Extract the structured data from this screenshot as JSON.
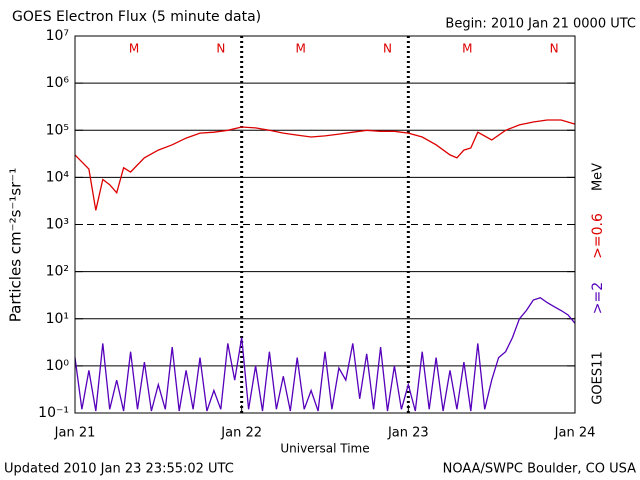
{
  "chart_data": {
    "type": "line",
    "title": "GOES Electron Flux (5 minute data)",
    "subtitle": "Begin: 2010 Jan 21 0000 UTC",
    "footer_left": "Updated 2010 Jan 23 23:55:02 UTC",
    "footer_right": "NOAA/SWPC Boulder, CO USA",
    "x_label": "Universal Time",
    "y_label": "Particles cm⁻²s⁻¹sr⁻¹",
    "satellite": "GOES11",
    "units_label": "MeV",
    "log_scale": true,
    "grid": true,
    "threshold": 1000,
    "xlim": [
      0,
      72
    ],
    "xticks": [
      {
        "value": 0,
        "label": "Jan 21"
      },
      {
        "value": 24,
        "label": "Jan 22"
      },
      {
        "value": 48,
        "label": "Jan 23"
      },
      {
        "value": 72,
        "label": "Jan 24"
      }
    ],
    "ylim": [
      0.1,
      10000000
    ],
    "yticks": [
      {
        "value": 0.1,
        "label": "10⁻¹"
      },
      {
        "value": 1,
        "label": "10⁰"
      },
      {
        "value": 10,
        "label": "10¹"
      },
      {
        "value": 100,
        "label": "10²"
      },
      {
        "value": 1000,
        "label": "10³"
      },
      {
        "value": 10000,
        "label": "10⁴"
      },
      {
        "value": 100000,
        "label": "10⁵"
      },
      {
        "value": 1000000,
        "label": "10⁶"
      },
      {
        "value": 10000000,
        "label": "10⁷"
      }
    ],
    "annotations": [
      {
        "text": "M",
        "x": 8.5
      },
      {
        "text": "N",
        "x": 21
      },
      {
        "text": "M",
        "x": 32.5
      },
      {
        "text": "N",
        "x": 45
      },
      {
        "text": "M",
        "x": 56.5
      },
      {
        "text": "N",
        "x": 69
      }
    ],
    "annotation_color": "#dd0000",
    "series": [
      {
        "name": ">=2",
        "color": "#5500bb",
        "x": [
          0,
          1,
          2,
          3,
          4,
          5,
          6,
          7,
          8,
          9,
          10,
          11,
          12,
          13,
          14,
          15,
          16,
          17,
          18,
          19,
          20,
          21,
          22,
          23,
          24,
          25,
          26,
          27,
          28,
          29,
          30,
          31,
          32,
          33,
          34,
          35,
          36,
          37,
          38,
          39,
          40,
          41,
          42,
          43,
          44,
          45,
          46,
          47,
          48,
          49,
          50,
          51,
          52,
          53,
          54,
          55,
          56,
          57,
          58,
          59,
          60,
          61,
          62,
          63,
          64,
          65,
          66,
          67,
          68,
          69,
          70,
          71,
          72
        ],
        "values": [
          1.5,
          0.12,
          0.8,
          0.11,
          3,
          0.12,
          0.5,
          0.11,
          2,
          0.12,
          1.2,
          0.11,
          0.4,
          0.12,
          2.5,
          0.11,
          0.8,
          0.12,
          1.5,
          0.11,
          0.3,
          0.12,
          3,
          0.5,
          4,
          0.12,
          1,
          0.11,
          2,
          0.12,
          0.6,
          0.11,
          1.5,
          0.12,
          0.3,
          0.11,
          2,
          0.12,
          0.9,
          0.5,
          3,
          0.2,
          1.8,
          0.12,
          2.5,
          0.11,
          1,
          0.12,
          0.4,
          0.11,
          2,
          0.12,
          1.5,
          0.11,
          0.8,
          0.12,
          1.2,
          0.11,
          3,
          0.12,
          0.5,
          1.5,
          2,
          4,
          10,
          15,
          25,
          28,
          22,
          18,
          15,
          12,
          8
        ]
      },
      {
        "name": ">=0.6",
        "color": "#dd0000",
        "x": [
          0,
          2,
          3,
          4,
          5,
          6,
          7,
          8,
          10,
          12,
          14,
          16,
          18,
          20,
          22,
          24,
          26,
          28,
          30,
          32,
          34,
          36,
          38,
          40,
          42,
          44,
          46,
          48,
          50,
          52,
          54,
          55,
          56,
          57,
          58,
          60,
          62,
          64,
          66,
          68,
          70,
          72
        ],
        "values": [
          30000,
          15000,
          2000,
          9000,
          7000,
          4700,
          16000,
          13000,
          26000,
          38000,
          49000,
          68000,
          87000,
          91000,
          100000,
          117000,
          112000,
          100000,
          87000,
          79000,
          72000,
          76000,
          83000,
          91000,
          100000,
          95000,
          95000,
          87000,
          72000,
          49000,
          30000,
          26000,
          38000,
          42000,
          91000,
          62000,
          100000,
          130000,
          150000,
          165000,
          165000,
          135000
        ]
      }
    ]
  }
}
